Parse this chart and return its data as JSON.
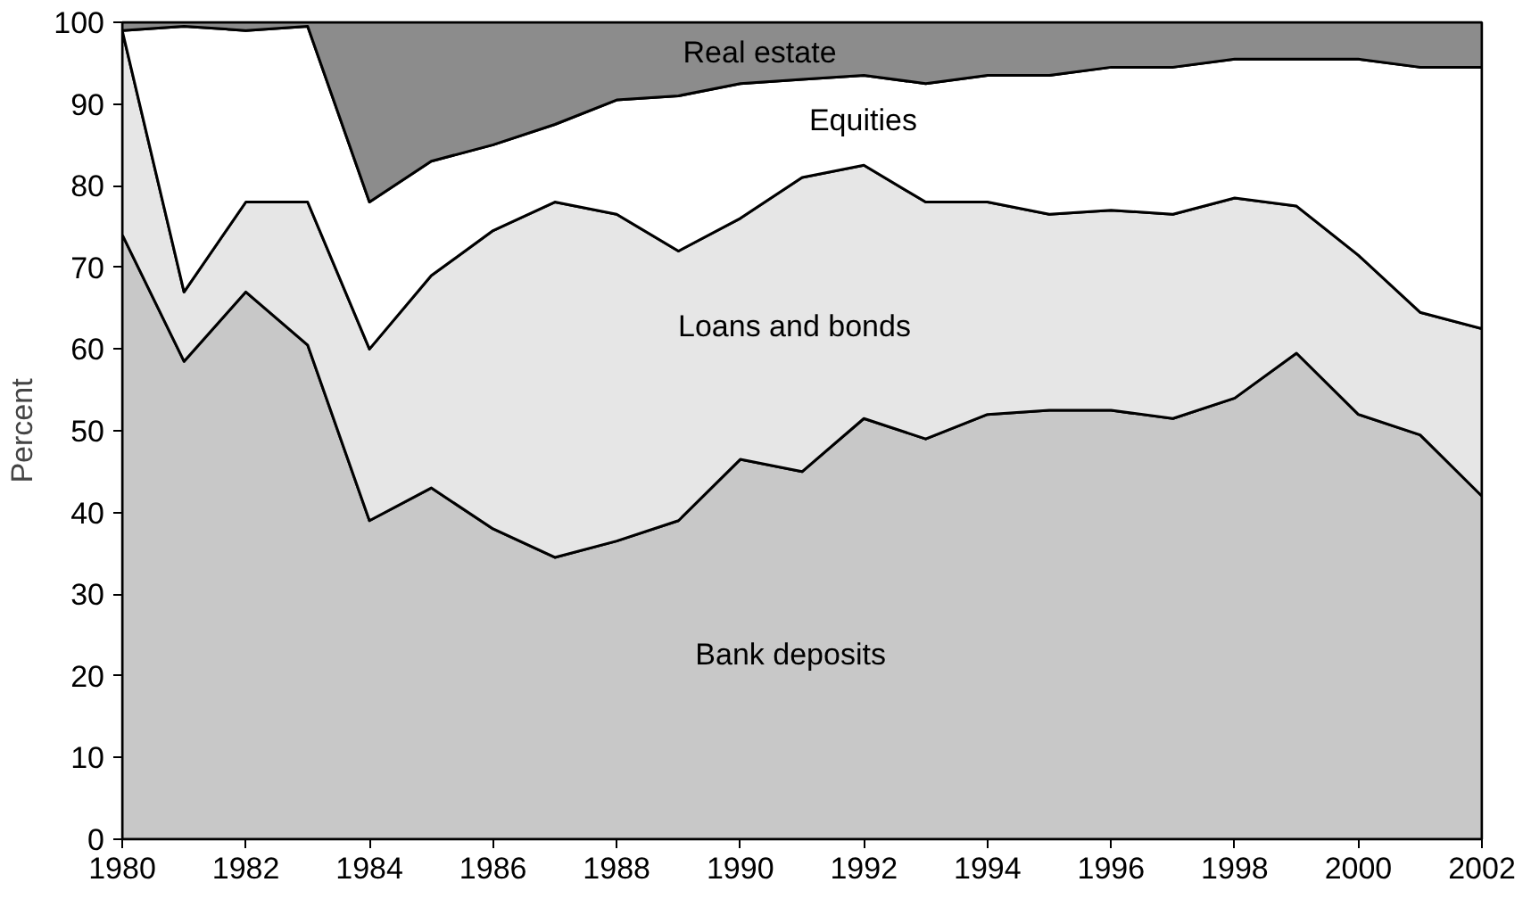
{
  "chart_data": {
    "type": "area",
    "stacked": true,
    "ylabel": "Percent",
    "x": [
      1980,
      1981,
      1982,
      1983,
      1984,
      1985,
      1986,
      1987,
      1988,
      1989,
      1990,
      1991,
      1992,
      1993,
      1994,
      1995,
      1996,
      1997,
      1998,
      1999,
      2000,
      2001,
      2002
    ],
    "series": [
      {
        "name": "Bank deposits",
        "color": "#c8c8c8",
        "values": [
          74,
          58.5,
          67,
          60.5,
          39,
          43,
          38,
          34.5,
          36.5,
          39,
          46.5,
          45,
          51.5,
          49,
          52,
          52.5,
          52.5,
          51.5,
          54,
          59.5,
          52,
          49.5,
          42
        ]
      },
      {
        "name": "Loans and bonds",
        "color": "#e6e6e6",
        "values": [
          25,
          8.5,
          11,
          17.5,
          21,
          26,
          36.5,
          43.5,
          40,
          33,
          29.5,
          36,
          31,
          29,
          26,
          24,
          24.5,
          25,
          24.5,
          18,
          19.5,
          15,
          20.5
        ]
      },
      {
        "name": "Equities",
        "color": "#ffffff",
        "values": [
          0,
          32.5,
          21,
          21.5,
          18,
          14,
          10.5,
          9.5,
          14,
          19,
          16.5,
          12,
          11,
          14.5,
          15.5,
          17,
          17.5,
          18,
          17,
          18,
          24,
          30,
          32
        ]
      },
      {
        "name": "Real estate",
        "color": "#8c8c8c",
        "values": [
          1,
          0.5,
          1,
          0.5,
          22,
          17,
          15,
          12.5,
          9.5,
          9,
          7.5,
          7,
          6.5,
          7.5,
          6.5,
          6.5,
          5.5,
          5.5,
          4.5,
          4.5,
          4.5,
          5.5,
          5.5
        ]
      }
    ],
    "xlim": [
      1980,
      2002
    ],
    "ylim": [
      0,
      100
    ],
    "xticks": [
      1980,
      1982,
      1984,
      1986,
      1988,
      1990,
      1992,
      1994,
      1996,
      1998,
      2000,
      2002
    ],
    "yticks": [
      0,
      10,
      20,
      30,
      40,
      50,
      60,
      70,
      80,
      90,
      100
    ]
  }
}
